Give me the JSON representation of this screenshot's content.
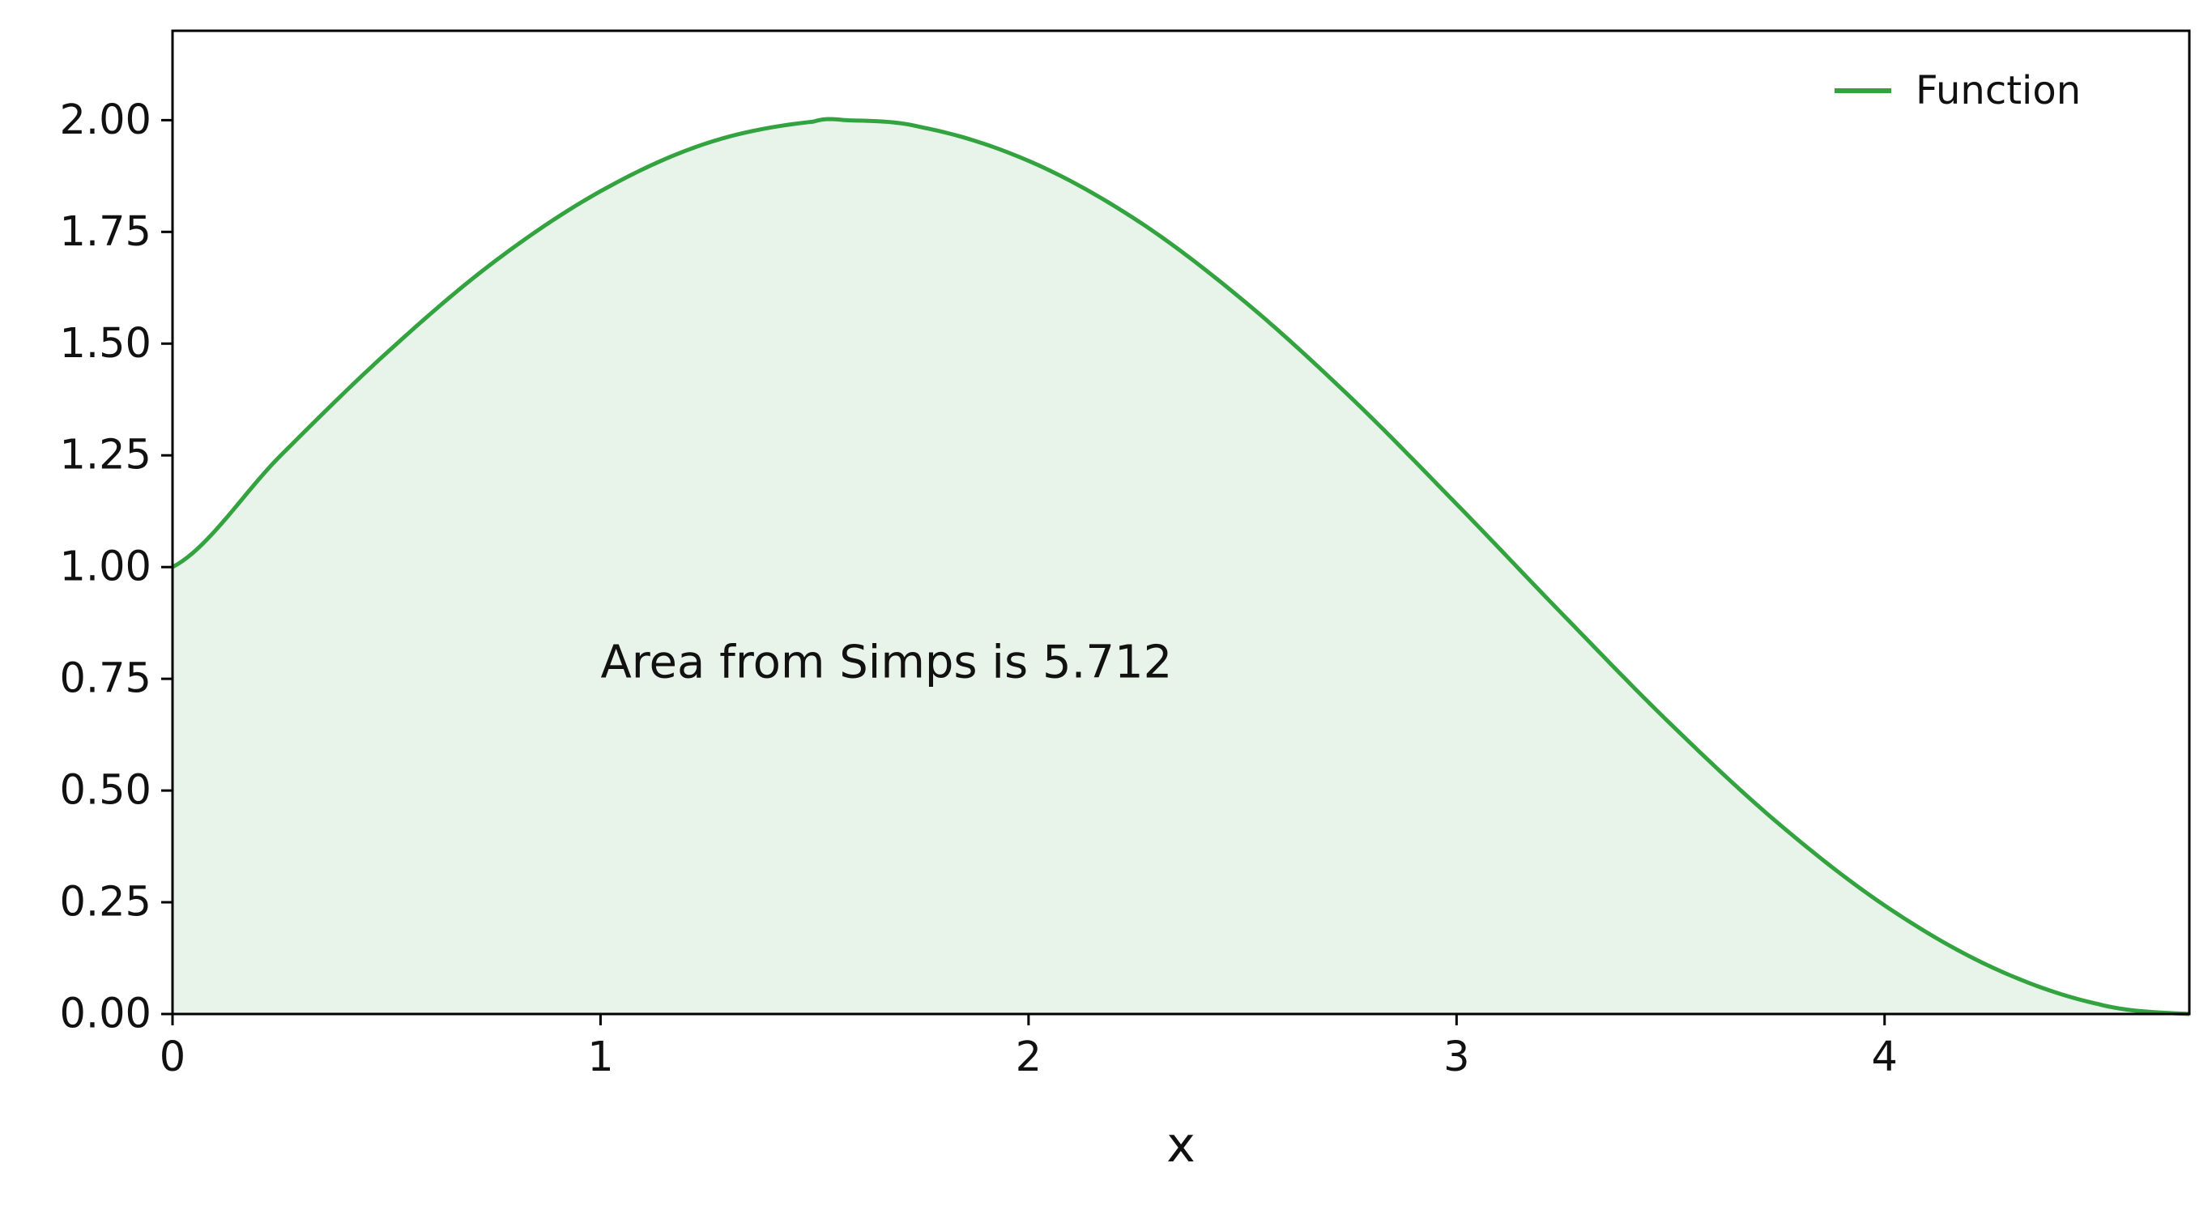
{
  "chart_data": {
    "type": "area",
    "function": "1 + sin(x)",
    "xlabel": "x",
    "ylabel": "",
    "title": "",
    "xlim": [
      0,
      4.712
    ],
    "ylim": [
      0,
      2.2
    ],
    "xticks": [
      0,
      1,
      2,
      3,
      4
    ],
    "xtick_labels": [
      "0",
      "1",
      "2",
      "3",
      "4"
    ],
    "yticks": [
      0,
      0.25,
      0.5,
      0.75,
      1.0,
      1.25,
      1.5,
      1.75,
      2.0
    ],
    "ytick_labels": [
      "0.00",
      "0.25",
      "0.50",
      "0.75",
      "1.00",
      "1.25",
      "1.50",
      "1.75",
      "2.00"
    ],
    "series": [
      {
        "name": "Function",
        "color": "#33a33f",
        "fill_color": "#e8f4ea",
        "x": [
          0,
          0.25,
          0.5,
          0.75,
          1.0,
          1.25,
          1.5,
          1.5708,
          1.75,
          2.0,
          2.25,
          2.5,
          2.75,
          3.0,
          3.25,
          3.5,
          3.75,
          4.0,
          4.25,
          4.5,
          4.712
        ],
        "y": [
          1.0,
          1.247,
          1.479,
          1.682,
          1.841,
          1.949,
          1.997,
          2.0,
          1.984,
          1.909,
          1.778,
          1.598,
          1.382,
          1.141,
          0.892,
          0.649,
          0.428,
          0.243,
          0.105,
          0.022,
          0.0
        ]
      }
    ],
    "annotation": {
      "text": "Area from Simps is 5.712",
      "x": 1.0,
      "y": 0.78
    },
    "legend": {
      "position": "top-right",
      "entries": [
        "Function"
      ]
    },
    "grid": false
  }
}
